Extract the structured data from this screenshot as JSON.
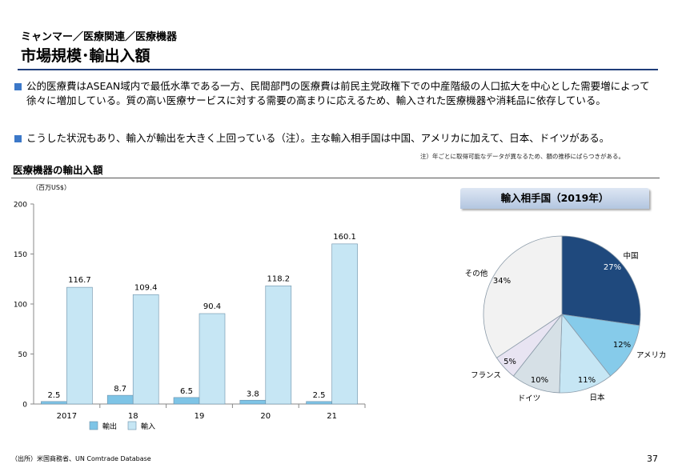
{
  "header": {
    "breadcrumb": "ミャンマー／医療関連／医療機器",
    "title": "市場規模･輸出入額"
  },
  "bullets": [
    "公的医療費はASEAN域内で最低水準である一方、民間部門の医療費は前民主党政権下での中産階級の人口拡大を中心とした需要増によって徐々に増加している。質の高い医療サービスに対する需要の高まりに応えるため、輸入された医療機器や消耗品に依存している。",
    "こうした状況もあり、輸入が輸出を大きく上回っている（注）。主な輸入相手国は中国、アメリカに加えて、日本、ドイツがある。"
  ],
  "note": "注）年ごとに取得可能なデータが異なるため、額の推移にばらつきがある。",
  "section_title": "医療機器の輸出入額",
  "unit_label": "（百万US$）",
  "pie_title": "輸入相手国（2019年）",
  "source": "（出所）米国商務省、UN Comtrade Database",
  "page_number": "37",
  "colors": {
    "export": "#7ec4e6",
    "import": "#c6e6f4",
    "china": "#1f497d",
    "usa": "#86cbea",
    "japan": "#c6e6f4",
    "germany": "#d6e0e6",
    "france": "#e8e4f2",
    "other": "#f2f2f2"
  },
  "chart_data": [
    {
      "type": "bar",
      "categories": [
        "2017",
        "18",
        "19",
        "20",
        "21"
      ],
      "series": [
        {
          "name": "輸出",
          "values": [
            2.5,
            8.7,
            6.5,
            3.8,
            2.5
          ]
        },
        {
          "name": "輸入",
          "values": [
            116.7,
            109.4,
            90.4,
            118.2,
            160.1
          ]
        }
      ],
      "title": "医療機器の輸出入額",
      "ylabel": "（百万US$）",
      "ylim": [
        0,
        200
      ],
      "yticks": [
        0,
        50,
        100,
        150,
        200
      ],
      "legend": "bottom",
      "data_labels": true
    },
    {
      "type": "pie",
      "title": "輸入相手国（2019年）",
      "labels": [
        "中国",
        "アメリカ",
        "日本",
        "ドイツ",
        "フランス",
        "その他"
      ],
      "values": [
        27,
        12,
        11,
        10,
        5,
        34
      ],
      "value_labels": [
        "27%",
        "12%",
        "11%",
        "10%",
        "5%",
        "34%"
      ]
    }
  ]
}
